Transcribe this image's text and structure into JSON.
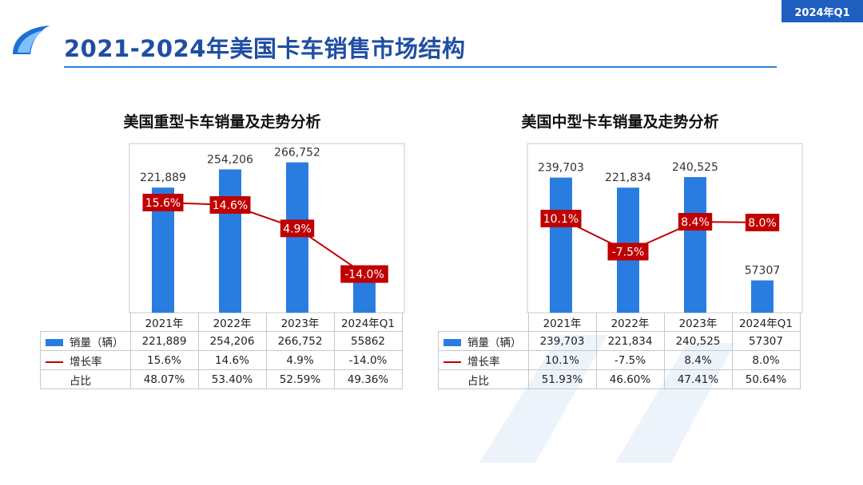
{
  "corner_tag": "2024年Q1",
  "page_title": "2021-2024年美国卡车销售市场结构",
  "colors": {
    "bar": "#2a7de0",
    "line": "#c00000",
    "accent": "#1f4ea3"
  },
  "chart_data": [
    {
      "type": "bar",
      "title": "美国重型卡车销量及走势分析",
      "categories": [
        "2021年",
        "2022年",
        "2023年",
        "2024年Q1"
      ],
      "ylim": [
        0,
        300000
      ],
      "grid": false,
      "series": [
        {
          "name": "销量（辆）",
          "type": "bar",
          "values": [
            221889,
            254206,
            266752,
            55862
          ],
          "labels": [
            "221,889",
            "254,206",
            "266,752",
            "55862"
          ]
        },
        {
          "name": "增长率",
          "type": "line",
          "values": [
            15.6,
            14.6,
            4.9,
            -14.0
          ],
          "labels": [
            "15.6%",
            "14.6%",
            "4.9%",
            "-14.0%"
          ]
        }
      ],
      "share": {
        "name": "占比",
        "labels": [
          "48.07%",
          "53.40%",
          "52.59%",
          "49.36%"
        ]
      },
      "growth_range": [
        -30,
        40
      ]
    },
    {
      "type": "bar",
      "title": "美国中型卡车销量及走势分析",
      "categories": [
        "2021年",
        "2022年",
        "2023年",
        "2024年Q1"
      ],
      "ylim": [
        0,
        300000
      ],
      "grid": false,
      "series": [
        {
          "name": "销量（辆）",
          "type": "bar",
          "values": [
            239703,
            221834,
            240525,
            57307
          ],
          "labels": [
            "239,703",
            "221,834",
            "240,525",
            "57307"
          ]
        },
        {
          "name": "增长率",
          "type": "line",
          "values": [
            10.1,
            -7.5,
            8.4,
            8.0
          ],
          "labels": [
            "10.1%",
            "-7.5%",
            "8.4%",
            "8.0%"
          ]
        }
      ],
      "share": {
        "name": "占比",
        "labels": [
          "51.93%",
          "46.60%",
          "47.41%",
          "50.64%"
        ]
      },
      "growth_range": [
        -40,
        50
      ]
    }
  ]
}
